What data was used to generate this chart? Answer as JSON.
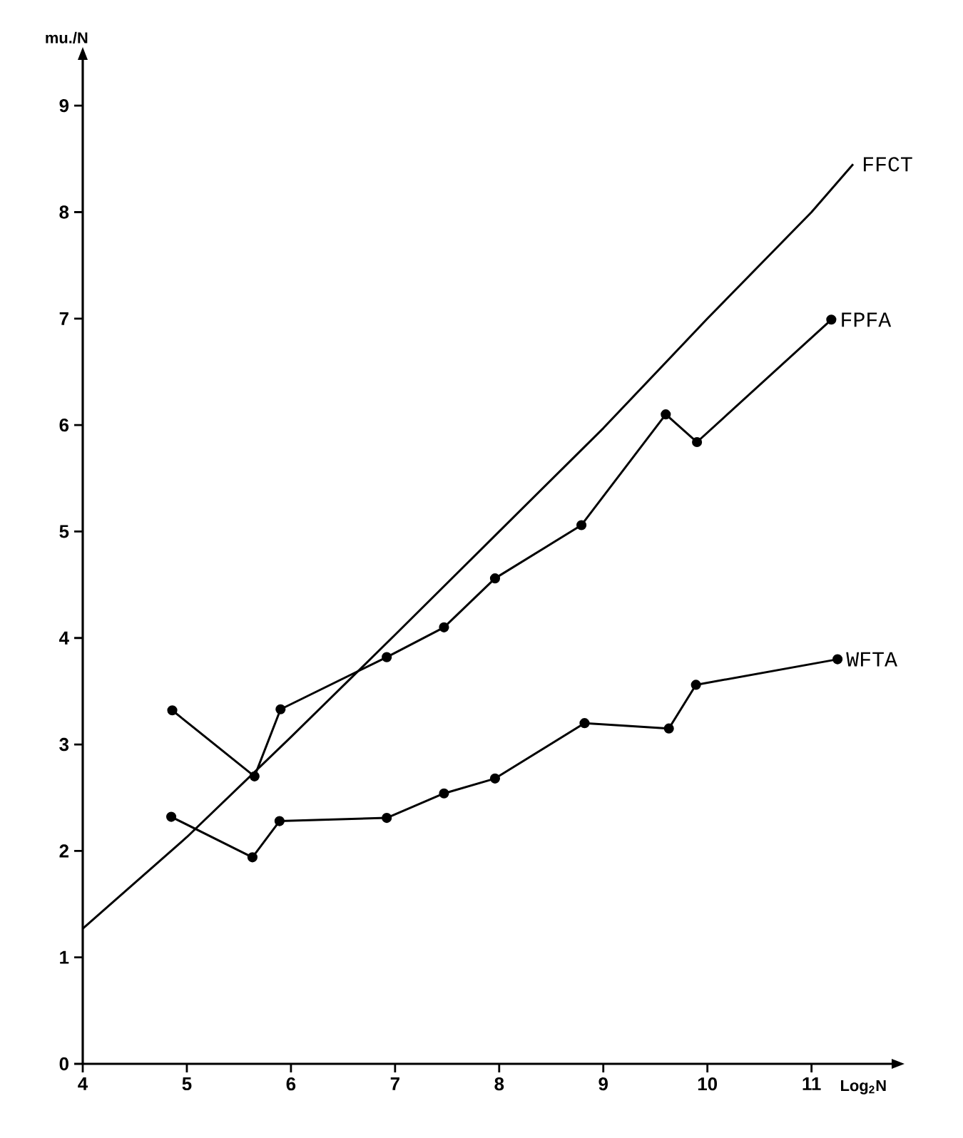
{
  "chart_data": {
    "type": "line",
    "xlabel": "Log$_{2}$N",
    "ylabel": "mu./N",
    "xlim": [
      4,
      11.77
    ],
    "ylim": [
      0,
      9.43
    ],
    "xticks": [
      4,
      5,
      6,
      7,
      8,
      9,
      10,
      11
    ],
    "yticks": [
      0,
      1,
      2,
      3,
      4,
      5,
      6,
      7,
      8,
      9
    ],
    "grid": false,
    "marker": "circle",
    "line_style": "solid",
    "series": [
      {
        "name": "FFCT",
        "color": "#000000",
        "marker": "none",
        "x": [
          4,
          5,
          6,
          7,
          8,
          9,
          10,
          11,
          11.4
        ],
        "values": [
          1.27,
          2.13,
          3.07,
          4.03,
          5.0,
          5.97,
          7.0,
          8.0,
          8.45
        ]
      },
      {
        "name": "FPFA",
        "color": "#000000",
        "x": [
          4.86,
          5.65,
          5.9,
          6.92,
          7.47,
          7.96,
          8.79,
          9.6,
          9.9,
          11.19
        ],
        "values": [
          3.32,
          2.7,
          3.33,
          3.82,
          4.1,
          4.56,
          5.06,
          6.1,
          5.84,
          6.99
        ]
      },
      {
        "name": "WFTA",
        "color": "#000000",
        "x": [
          4.85,
          5.63,
          5.89,
          6.92,
          7.47,
          7.96,
          8.82,
          9.63,
          9.89,
          11.25
        ],
        "values": [
          2.32,
          1.94,
          2.28,
          2.31,
          2.54,
          2.68,
          3.2,
          3.15,
          3.56,
          3.8
        ]
      }
    ]
  }
}
